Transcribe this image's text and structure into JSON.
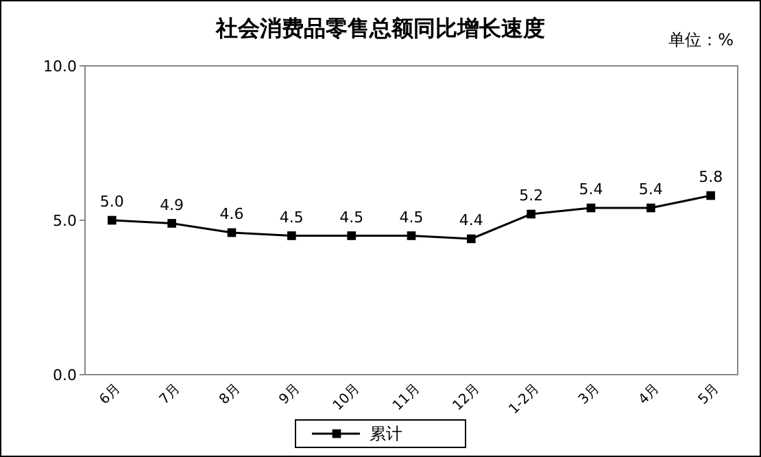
{
  "chart_data": {
    "type": "line",
    "title": "社会消费品零售总额同比增长速度",
    "annotations": [
      "单位：%"
    ],
    "categories": [
      "6月",
      "7月",
      "8月",
      "9月",
      "10月",
      "11月",
      "12月",
      "1-2月",
      "3月",
      "4月",
      "5月"
    ],
    "series": [
      {
        "name": "累计",
        "color": "#000000",
        "values": [
          5.0,
          4.9,
          4.6,
          4.5,
          4.5,
          4.5,
          4.4,
          5.2,
          5.4,
          5.4,
          5.8
        ]
      }
    ],
    "ylim": [
      0,
      10
    ],
    "yticks": [
      {
        "value": 0,
        "label": "0.0"
      },
      {
        "value": 5,
        "label": "5.0"
      },
      {
        "value": 10,
        "label": "10.0"
      }
    ],
    "value_labels": [
      "5.0",
      "4.9",
      "4.6",
      "4.5",
      "4.5",
      "4.5",
      "4.4",
      "5.2",
      "5.4",
      "5.4",
      "5.8"
    ],
    "marker": "square",
    "legend": "bottom",
    "grid": false
  }
}
